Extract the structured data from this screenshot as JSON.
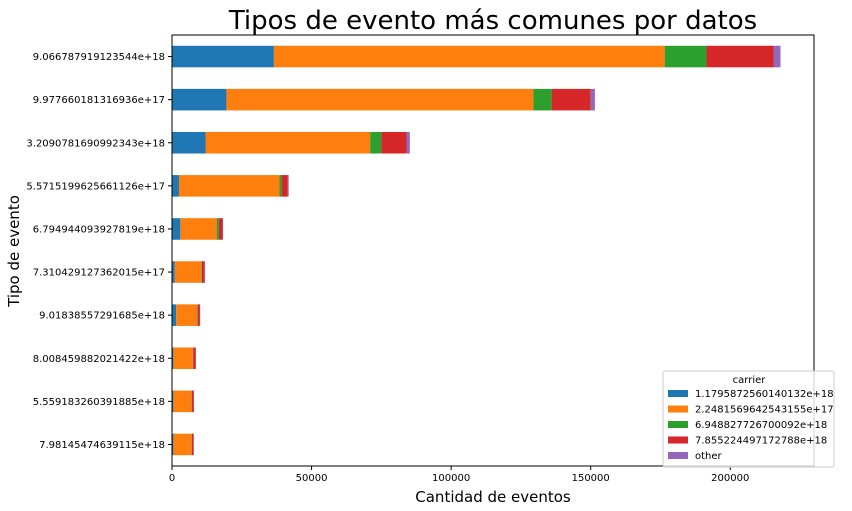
{
  "chart_data": {
    "type": "bar",
    "orientation": "horizontal",
    "stacked": true,
    "title": "Tipos de evento más comunes por datos",
    "xlabel": "Cantidad de eventos",
    "ylabel": "Tipo de evento",
    "xlim": [
      0,
      230000
    ],
    "xticks": [
      0,
      50000,
      100000,
      150000,
      200000
    ],
    "grid": false,
    "legend_title": "carrier",
    "legend_position": "bottom-right",
    "categories": [
      "9.066787919123544e+18",
      "9.977660181316936e+17",
      "3.2090781690992343e+18",
      "5.5715199625661126e+17",
      "6.794944093927819e+18",
      "7.310429127362015e+17",
      "9.01838557291685e+18",
      "8.008459882021422e+18",
      "5.559183260391885e+18",
      "7.98145474639115e+18"
    ],
    "series": [
      {
        "name": "1.1795872560140132e+18",
        "color": "#1f77b4",
        "values": [
          36500,
          19500,
          12000,
          2500,
          3000,
          1000,
          1500,
          500,
          500,
          500
        ]
      },
      {
        "name": "2.2481569642543155e+17",
        "color": "#ff7f0e",
        "values": [
          140000,
          110000,
          59000,
          36000,
          13000,
          9500,
          7500,
          7000,
          6500,
          6500
        ]
      },
      {
        "name": "6.948827726700092e+18",
        "color": "#2ca02c",
        "values": [
          15000,
          6500,
          4000,
          800,
          800,
          200,
          200,
          100,
          100,
          100
        ]
      },
      {
        "name": "7.855224497172788e+18",
        "color": "#d62728",
        "values": [
          24000,
          14000,
          9000,
          2200,
          1300,
          1000,
          800,
          900,
          700,
          600
        ]
      },
      {
        "name": "other",
        "color": "#9467bd",
        "values": [
          2500,
          1500,
          1200,
          300,
          200,
          100,
          100,
          100,
          100,
          100
        ]
      }
    ]
  }
}
